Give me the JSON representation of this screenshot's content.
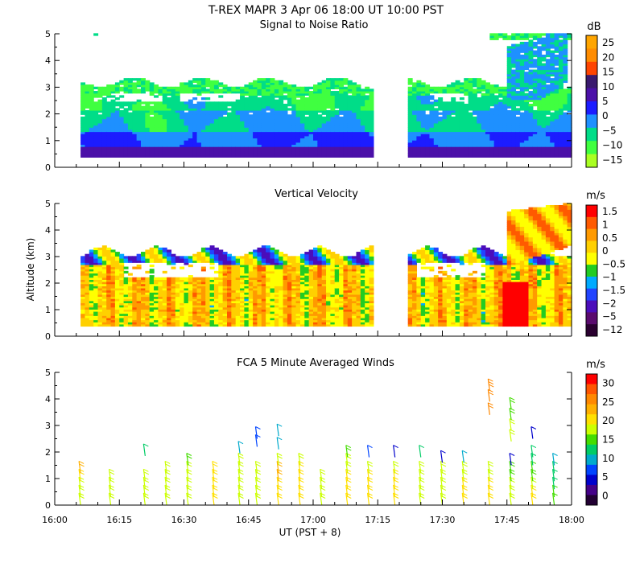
{
  "figure": {
    "title": "T-REX  MAPR  3 Apr 06  18:00 UT  10:00  PST",
    "xlabel": "UT  (PST + 8)",
    "ylabel": "Altitude (km)"
  },
  "chart_data": [
    {
      "type": "heatmap",
      "id": "snr",
      "title": "Signal to Noise Ratio",
      "units": "dB",
      "x_range_min": [
        960,
        1080
      ],
      "y_range_km": [
        0,
        5
      ],
      "data_gaps_min": [
        [
          1034,
          1042
        ]
      ],
      "yticks": [
        0,
        1,
        2,
        3,
        4,
        5
      ],
      "colorbar": {
        "labels": [
          "25",
          "20",
          "15",
          "10",
          "5",
          "0",
          "−5",
          "−10",
          "−15"
        ],
        "colors": [
          "#ffa500",
          "#ff8c00",
          "#ff4500",
          "#3a1a6e",
          "#4b10a8",
          "#1c1cff",
          "#1e90ff",
          "#00dd88",
          "#40ff40",
          "#aaff22"
        ]
      },
      "layers_km": [
        {
          "range": [
            0.4,
            0.75
          ],
          "snr_db": 2
        },
        {
          "range": [
            0.75,
            1.4
          ],
          "snr_db": -3
        },
        {
          "range": [
            1.4,
            2.6
          ],
          "snr_db": -8
        },
        {
          "range": [
            2.6,
            3.2
          ],
          "snr_db": -13
        }
      ]
    },
    {
      "type": "heatmap",
      "id": "vertical_velocity",
      "title": "Vertical Velocity",
      "units": "m/s",
      "x_range_min": [
        960,
        1080
      ],
      "y_range_km": [
        0,
        5
      ],
      "data_gaps_min": [
        [
          1034,
          1042
        ]
      ],
      "yticks": [
        0,
        1,
        2,
        3,
        4,
        5
      ],
      "colorbar": {
        "labels": [
          "1.5",
          "1",
          "0.5",
          "0",
          "−0.5",
          "−1",
          "−1.5",
          "−2",
          "−5",
          "−12"
        ],
        "colors": [
          "#ff0000",
          "#ff5a00",
          "#ff9a00",
          "#ffd000",
          "#ffff00",
          "#22cc22",
          "#00aaff",
          "#2244ff",
          "#4b0dbb",
          "#5a0a6e",
          "#2a0030"
        ]
      }
    },
    {
      "type": "barbs",
      "id": "fca_winds",
      "title": "FCA 5 Minute Averaged Winds",
      "units": "m/s",
      "x_range_min": [
        960,
        1080
      ],
      "y_range_km": [
        0,
        5
      ],
      "yticks": [
        0,
        1,
        2,
        3,
        4,
        5
      ],
      "colorbar": {
        "labels": [
          "30",
          "25",
          "20",
          "15",
          "10",
          "5",
          "0"
        ],
        "colors": [
          "#ff0000",
          "#ff5500",
          "#ff8800",
          "#ffb000",
          "#ffe000",
          "#ccff00",
          "#44dd00",
          "#00cc66",
          "#00aacc",
          "#0044ff",
          "#0000cc",
          "#440088",
          "#220033"
        ]
      },
      "xticks": [
        "16:00",
        "16:15",
        "16:30",
        "16:45",
        "17:00",
        "17:15",
        "17:30",
        "17:45",
        "18:00"
      ],
      "xticks_min": [
        960,
        975,
        990,
        1005,
        1020,
        1035,
        1050,
        1065,
        1080
      ],
      "profiles": [
        {
          "t": 966,
          "alts": [
            0.0,
            0.3,
            0.6,
            0.9,
            1.2
          ],
          "speeds_ms": [
            18,
            18,
            18,
            20,
            22
          ]
        },
        {
          "t": 973,
          "alts": [
            0.0,
            0.3,
            0.6,
            0.9
          ],
          "speeds_ms": [
            18,
            18,
            18,
            18
          ]
        },
        {
          "t": 981,
          "alts": [
            0.0,
            0.3,
            0.6,
            0.9,
            1.85
          ],
          "speeds_ms": [
            18,
            18,
            18,
            18,
            12
          ]
        },
        {
          "t": 986,
          "alts": [
            0.0,
            0.3,
            0.6,
            0.9,
            1.2
          ],
          "speeds_ms": [
            18,
            18,
            18,
            18,
            18
          ]
        },
        {
          "t": 991,
          "alts": [
            0.0,
            0.3,
            0.6,
            0.9,
            1.2,
            1.5
          ],
          "speeds_ms": [
            18,
            18,
            18,
            18,
            18,
            16
          ]
        },
        {
          "t": 997,
          "alts": [
            0.0,
            0.3,
            0.6,
            0.9,
            1.2
          ],
          "speeds_ms": [
            20,
            20,
            20,
            20,
            20
          ]
        },
        {
          "t": 1003,
          "alts": [
            0.0,
            0.3,
            0.6,
            0.9,
            1.2,
            1.5,
            1.95
          ],
          "speeds_ms": [
            18,
            18,
            18,
            18,
            18,
            18,
            10
          ]
        },
        {
          "t": 1007,
          "alts": [
            0.0,
            0.3,
            0.6,
            0.9,
            1.2,
            2.2,
            2.5
          ],
          "speeds_ms": [
            18,
            18,
            18,
            18,
            18,
            8,
            8
          ]
        },
        {
          "t": 1012,
          "alts": [
            0.0,
            0.3,
            0.6,
            0.9,
            1.2,
            1.5,
            2.1,
            2.6
          ],
          "speeds_ms": [
            20,
            20,
            20,
            22,
            22,
            18,
            10,
            10
          ]
        },
        {
          "t": 1017,
          "alts": [
            0.0,
            0.3,
            0.6,
            0.9,
            1.2,
            1.5
          ],
          "speeds_ms": [
            20,
            20,
            20,
            20,
            20,
            18
          ]
        },
        {
          "t": 1022,
          "alts": [
            0.0,
            0.3,
            0.6,
            0.9
          ],
          "speeds_ms": [
            18,
            18,
            18,
            18
          ]
        },
        {
          "t": 1028,
          "alts": [
            0.0,
            0.3,
            0.6,
            0.9,
            1.2,
            1.5,
            1.8
          ],
          "speeds_ms": [
            20,
            20,
            20,
            20,
            18,
            18,
            16
          ]
        },
        {
          "t": 1033,
          "alts": [
            0.0,
            0.3,
            0.6,
            0.9,
            1.2,
            1.8
          ],
          "speeds_ms": [
            20,
            20,
            20,
            20,
            18,
            8
          ]
        },
        {
          "t": 1039,
          "alts": [
            0.0,
            0.3,
            0.6,
            0.9,
            1.2,
            1.8
          ],
          "speeds_ms": [
            20,
            20,
            20,
            20,
            18,
            6
          ]
        },
        {
          "t": 1045,
          "alts": [
            0.0,
            0.3,
            0.6,
            0.9,
            1.2,
            1.8
          ],
          "speeds_ms": [
            18,
            18,
            18,
            18,
            18,
            12
          ]
        },
        {
          "t": 1050,
          "alts": [
            0.0,
            0.3,
            0.6,
            0.9,
            1.2,
            1.6
          ],
          "speeds_ms": [
            18,
            18,
            18,
            18,
            18,
            6
          ]
        },
        {
          "t": 1055,
          "alts": [
            0.0,
            0.3,
            0.6,
            0.9,
            1.2,
            1.6
          ],
          "speeds_ms": [
            20,
            20,
            20,
            18,
            18,
            10
          ]
        },
        {
          "t": 1061,
          "alts": [
            0.0,
            0.3,
            0.6,
            0.9,
            1.2,
            3.4,
            3.9,
            4.3
          ],
          "speeds_ms": [
            20,
            20,
            20,
            18,
            18,
            24,
            24,
            26
          ]
        },
        {
          "t": 1066,
          "alts": [
            0.0,
            0.3,
            0.6,
            0.9,
            1.2,
            1.5,
            2.4,
            2.8,
            3.2,
            3.6
          ],
          "speeds_ms": [
            18,
            18,
            18,
            16,
            16,
            6,
            18,
            18,
            16,
            16
          ]
        },
        {
          "t": 1071,
          "alts": [
            0.0,
            0.3,
            0.6,
            0.9,
            1.2,
            1.5,
            1.8,
            2.5
          ],
          "speeds_ms": [
            20,
            20,
            18,
            16,
            14,
            12,
            12,
            6
          ]
        },
        {
          "t": 1076,
          "alts": [
            0.0,
            0.3,
            0.6,
            0.9,
            1.2,
            1.5
          ],
          "speeds_ms": [
            14,
            14,
            12,
            12,
            12,
            10
          ]
        }
      ]
    }
  ]
}
